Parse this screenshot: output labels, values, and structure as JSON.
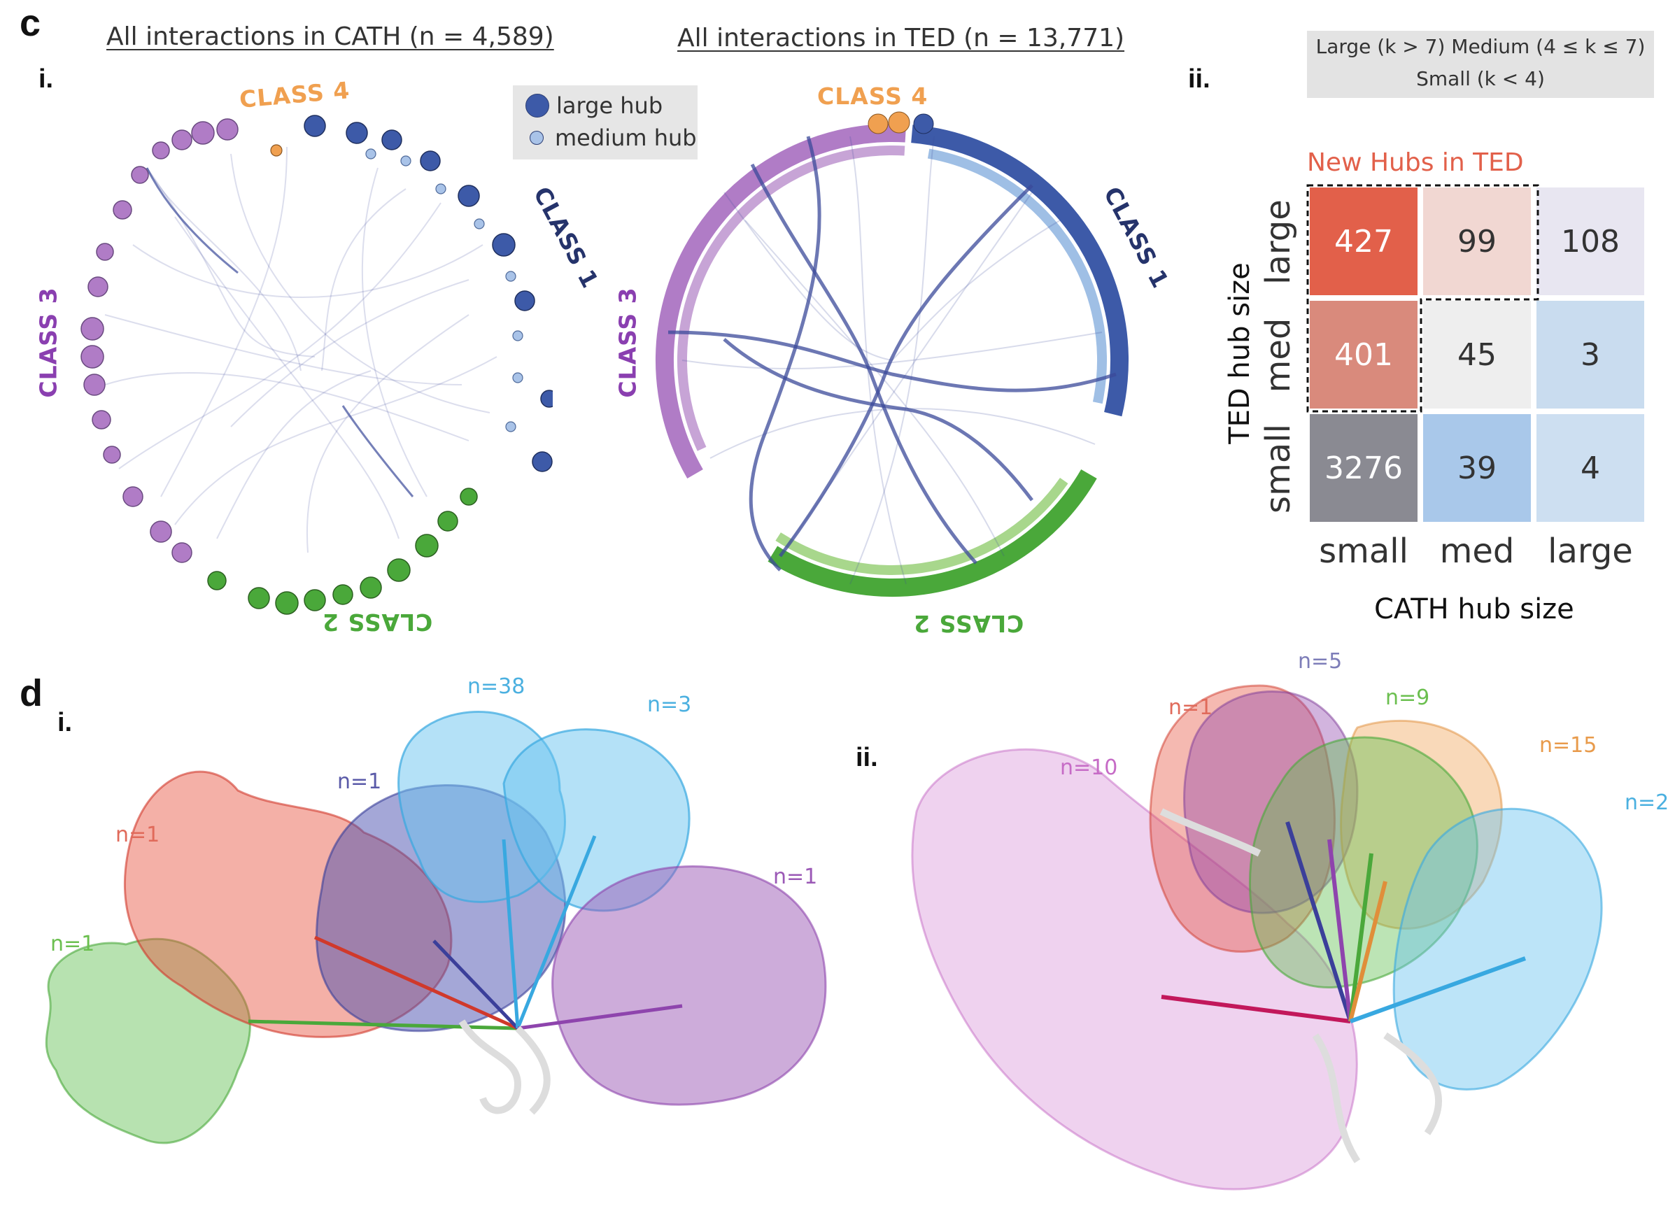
{
  "panel_c": {
    "letter": "c",
    "sub_i": "i.",
    "sub_ii": "ii.",
    "cath_title": "All interactions in CATH (n = 4,589)",
    "ted_title": "All interactions in TED (n = 13,771)",
    "classes": {
      "class1": "CLASS 1",
      "class2": "CLASS 2",
      "class3": "CLASS 3",
      "class4": "CLASS 4"
    },
    "legend": {
      "large": "large hub",
      "medium": "medium hub"
    },
    "colors": {
      "class1": "#3d5aa8",
      "class2": "#4aa83a",
      "class3": "#b07cc6",
      "class4": "#f0a050",
      "edge": "#3b4a9a"
    }
  },
  "heatmap": {
    "key_line1": "Large (k > 7)    Medium (4 ≤ k ≤ 7)",
    "key_line2": "Small (k < 4)",
    "new_hubs_label": "New Hubs in TED",
    "y_title": "TED hub size",
    "x_title": "CATH hub size",
    "row_labels": [
      "large",
      "med",
      "small"
    ],
    "col_labels": [
      "small",
      "med",
      "large"
    ],
    "values": [
      [
        "427",
        "99",
        "108"
      ],
      [
        "401",
        "45",
        "3"
      ],
      [
        "3276",
        "39",
        "4"
      ]
    ],
    "cell_colors": [
      [
        "#e2604a",
        "#f1d7d2",
        "#e8e6f1"
      ],
      [
        "#d98a7c",
        "#eeeeee",
        "#c9dcef"
      ],
      [
        "#8a8a92",
        "#a9c8ea",
        "#cddff1"
      ]
    ]
  },
  "panel_d": {
    "letter": "d",
    "sub_i": "i.",
    "sub_ii": "ii.",
    "left_counts": {
      "green": "n=1",
      "red": "n=1",
      "blue": "n=1",
      "cyan_big": "n=38",
      "cyan_small": "n=3",
      "purple": "n=1"
    },
    "right_counts": {
      "pink": "n=10",
      "red": "n=1",
      "purple": "n=5",
      "green": "n=9",
      "orange": "n=15",
      "cyan": "n=2"
    }
  }
}
